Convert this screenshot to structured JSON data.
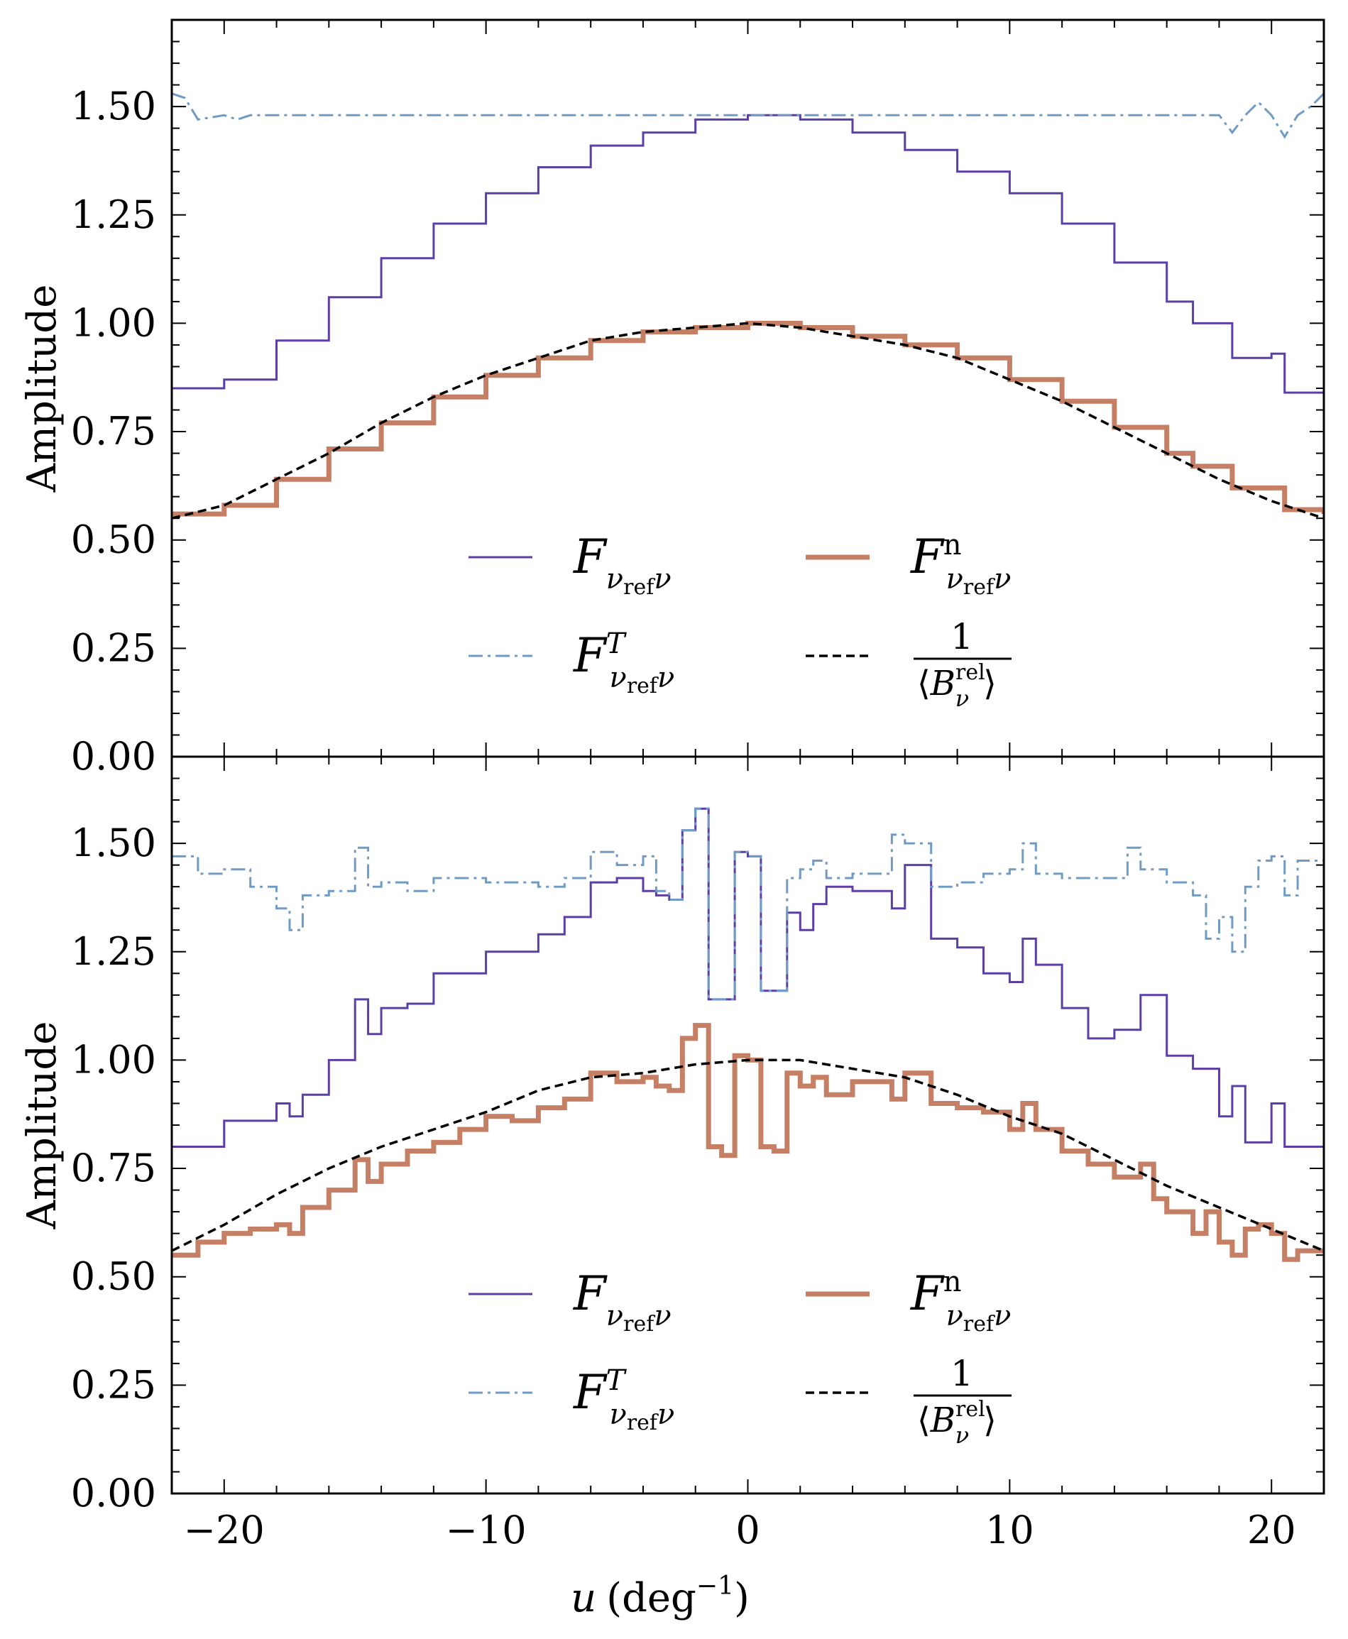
{
  "chart_data": {
    "type": "line",
    "xlabel": "u (deg⁻¹)",
    "x_axis_symbol": "u",
    "x_axis_unit": "(deg",
    "x_axis_unit_exponent": "−1",
    "x_axis_unit_close": ")",
    "xlim": [
      -22,
      22
    ],
    "xticks": [
      -20,
      -10,
      0,
      10,
      20
    ],
    "xtick_labels": [
      "−20",
      "−10",
      "0",
      "10",
      "20"
    ],
    "colors": {
      "F_raw": "#5b3fa6",
      "F_T": "#6f9bc4",
      "F_n": "#c47f64",
      "inv_B": "#000000"
    },
    "legend": {
      "placement": "lower-center",
      "entries": [
        {
          "key": "F_raw",
          "main": "F",
          "sub": "ν",
          "subsub": "ref",
          "sub2": "ν",
          "sup": ""
        },
        {
          "key": "F_n",
          "main": "F",
          "sub": "ν",
          "subsub": "ref",
          "sub2": "ν",
          "sup": "n"
        },
        {
          "key": "F_T",
          "main": "F",
          "sub": "ν",
          "subsub": "ref",
          "sub2": "ν",
          "sup": "T"
        },
        {
          "key": "inv_B",
          "numerator": "1",
          "den_open": "⟨",
          "den_main": "B",
          "den_sup": "rel",
          "den_sub": "ν",
          "den_close": "⟩"
        }
      ]
    },
    "panels": [
      {
        "name": "top",
        "ylabel": "Amplitude",
        "ylim": [
          0,
          1.7
        ],
        "yticks": [
          0.0,
          0.25,
          0.5,
          0.75,
          1.0,
          1.25,
          1.5
        ],
        "ytick_labels": [
          "0.00",
          "0.25",
          "0.50",
          "0.75",
          "1.00",
          "1.25",
          "1.50"
        ],
        "series": [
          {
            "key": "F_raw",
            "name": "F_raw",
            "style": "solid-step",
            "x": [
              -22,
              -20,
              -18,
              -16,
              -14,
              -12,
              -10,
              -8,
              -6,
              -4,
              -2,
              0,
              2,
              4,
              6,
              8,
              10,
              12,
              14,
              16,
              17,
              18,
              18.5,
              20,
              20.5,
              22
            ],
            "values": [
              0.85,
              0.87,
              0.96,
              1.06,
              1.15,
              1.23,
              1.3,
              1.36,
              1.41,
              1.44,
              1.47,
              1.48,
              1.47,
              1.44,
              1.4,
              1.35,
              1.3,
              1.23,
              1.14,
              1.05,
              1.0,
              1.0,
              0.92,
              0.93,
              0.84,
              0.84
            ]
          },
          {
            "key": "F_T",
            "name": "F_T",
            "style": "dashdot",
            "x": [
              -22,
              -21.5,
              -21,
              -20,
              -19.5,
              -19,
              -18,
              -10,
              0,
              10,
              18,
              18.5,
              19,
              19.5,
              20,
              20.5,
              21,
              21.5,
              22
            ],
            "values": [
              1.53,
              1.52,
              1.47,
              1.48,
              1.47,
              1.48,
              1.48,
              1.48,
              1.48,
              1.48,
              1.48,
              1.44,
              1.48,
              1.51,
              1.48,
              1.43,
              1.48,
              1.5,
              1.53
            ]
          },
          {
            "key": "F_n",
            "name": "F_n",
            "style": "thick-step",
            "x": [
              -22,
              -20,
              -18,
              -16,
              -14,
              -12,
              -10,
              -8,
              -6,
              -4,
              -2,
              0,
              2,
              4,
              6,
              8,
              10,
              12,
              14,
              16,
              17,
              18,
              18.5,
              19,
              20,
              20.5,
              22
            ],
            "values": [
              0.56,
              0.58,
              0.64,
              0.71,
              0.77,
              0.83,
              0.88,
              0.92,
              0.96,
              0.98,
              0.99,
              1.0,
              0.99,
              0.97,
              0.95,
              0.92,
              0.87,
              0.82,
              0.76,
              0.7,
              0.67,
              0.67,
              0.62,
              0.62,
              0.62,
              0.57,
              0.56
            ]
          },
          {
            "key": "inv_B",
            "name": "inv_B",
            "style": "dashed",
            "x": [
              -22,
              -20,
              -18,
              -16,
              -14,
              -12,
              -10,
              -8,
              -6,
              -4,
              -2,
              0,
              2,
              4,
              6,
              8,
              10,
              12,
              14,
              16,
              18,
              20,
              22
            ],
            "values": [
              0.55,
              0.58,
              0.64,
              0.7,
              0.77,
              0.83,
              0.88,
              0.92,
              0.96,
              0.98,
              0.99,
              1.0,
              0.99,
              0.97,
              0.95,
              0.92,
              0.87,
              0.82,
              0.76,
              0.7,
              0.64,
              0.59,
              0.55
            ]
          }
        ]
      },
      {
        "name": "bottom",
        "ylabel": "Amplitude",
        "ylim": [
          0,
          1.7
        ],
        "yticks": [
          0.0,
          0.25,
          0.5,
          0.75,
          1.0,
          1.25,
          1.5
        ],
        "ytick_labels": [
          "0.00",
          "0.25",
          "0.50",
          "0.75",
          "1.00",
          "1.25",
          "1.50"
        ],
        "series": [
          {
            "key": "F_raw",
            "name": "F_raw",
            "style": "solid-step",
            "x": [
              -22,
              -20,
              -18,
              -17.5,
              -17,
              -16,
              -15,
              -14.5,
              -14,
              -13,
              -12,
              -10,
              -8,
              -7,
              -6,
              -5,
              -4,
              -3.5,
              -3,
              -2.5,
              -2,
              -1.5,
              -1,
              -0.5,
              0,
              0.5,
              1,
              1.5,
              2,
              2.5,
              3,
              4,
              5,
              5.5,
              6,
              7,
              8,
              9,
              10,
              10.5,
              11,
              12,
              13,
              14,
              15,
              16,
              17,
              18,
              18.5,
              19,
              20,
              20.5,
              22
            ],
            "values": [
              0.8,
              0.86,
              0.9,
              0.87,
              0.92,
              1.0,
              1.14,
              1.06,
              1.12,
              1.13,
              1.2,
              1.25,
              1.29,
              1.33,
              1.41,
              1.42,
              1.39,
              1.38,
              1.37,
              1.53,
              1.58,
              1.14,
              1.14,
              1.48,
              1.47,
              1.16,
              1.16,
              1.34,
              1.3,
              1.36,
              1.4,
              1.39,
              1.39,
              1.35,
              1.45,
              1.28,
              1.26,
              1.2,
              1.18,
              1.28,
              1.22,
              1.12,
              1.05,
              1.07,
              1.15,
              1.01,
              0.98,
              0.87,
              0.94,
              0.81,
              0.9,
              0.8,
              0.82
            ]
          },
          {
            "key": "F_T",
            "name": "F_T",
            "style": "dashdot",
            "x": [
              -22,
              -21,
              -20,
              -19,
              -18,
              -17.5,
              -17,
              -16,
              -15,
              -14.5,
              -14,
              -13,
              -12,
              -10,
              -8,
              -7,
              -6,
              -5,
              -4,
              -3.5,
              -3,
              -2.5,
              -2,
              -1.5,
              -1,
              -0.5,
              0,
              0.5,
              1,
              1.5,
              2,
              2.5,
              3,
              4,
              5,
              5.5,
              6,
              7,
              8,
              9,
              10,
              10.5,
              11,
              12,
              13,
              14,
              14.5,
              15,
              16,
              17,
              17.5,
              18,
              18.5,
              19,
              19.5,
              20,
              20.5,
              21,
              22
            ],
            "values": [
              1.47,
              1.43,
              1.44,
              1.4,
              1.35,
              1.3,
              1.38,
              1.39,
              1.49,
              1.4,
              1.41,
              1.39,
              1.42,
              1.41,
              1.4,
              1.42,
              1.48,
              1.45,
              1.47,
              1.39,
              1.37,
              1.53,
              1.58,
              1.14,
              1.14,
              1.48,
              1.47,
              1.16,
              1.16,
              1.42,
              1.44,
              1.46,
              1.42,
              1.43,
              1.43,
              1.52,
              1.5,
              1.4,
              1.41,
              1.43,
              1.44,
              1.5,
              1.43,
              1.42,
              1.42,
              1.42,
              1.49,
              1.44,
              1.41,
              1.38,
              1.28,
              1.33,
              1.25,
              1.4,
              1.46,
              1.47,
              1.38,
              1.46,
              1.52
            ]
          },
          {
            "key": "F_n",
            "name": "F_n",
            "style": "thick-step",
            "x": [
              -22,
              -21,
              -20,
              -19,
              -18,
              -17.5,
              -17,
              -16,
              -15,
              -14.5,
              -14,
              -13,
              -12,
              -11,
              -10,
              -9,
              -8,
              -7,
              -6,
              -5,
              -4,
              -3.5,
              -3,
              -2.5,
              -2,
              -1.5,
              -1,
              -0.5,
              0,
              0.5,
              1,
              1.5,
              2,
              2.5,
              3,
              4,
              5,
              5.5,
              6,
              7,
              8,
              9,
              10,
              10.5,
              11,
              12,
              13,
              14,
              15,
              15.5,
              16,
              17,
              17.5,
              18,
              18.5,
              19,
              19.5,
              20,
              20.5,
              21,
              22
            ],
            "values": [
              0.55,
              0.58,
              0.6,
              0.61,
              0.62,
              0.6,
              0.66,
              0.7,
              0.77,
              0.72,
              0.76,
              0.79,
              0.81,
              0.84,
              0.87,
              0.86,
              0.89,
              0.91,
              0.97,
              0.95,
              0.96,
              0.94,
              0.93,
              1.05,
              1.08,
              0.8,
              0.78,
              1.01,
              1.0,
              0.8,
              0.79,
              0.97,
              0.94,
              0.96,
              0.92,
              0.95,
              0.95,
              0.91,
              0.97,
              0.9,
              0.89,
              0.88,
              0.84,
              0.9,
              0.84,
              0.79,
              0.76,
              0.73,
              0.76,
              0.68,
              0.65,
              0.6,
              0.65,
              0.58,
              0.55,
              0.61,
              0.62,
              0.6,
              0.54,
              0.56,
              0.56
            ]
          },
          {
            "key": "inv_B",
            "name": "inv_B",
            "style": "dashed",
            "x": [
              -22,
              -20,
              -18,
              -16,
              -14,
              -12,
              -10,
              -8,
              -6,
              -4,
              -2,
              0,
              2,
              4,
              6,
              8,
              10,
              12,
              14,
              16,
              18,
              20,
              22
            ],
            "values": [
              0.56,
              0.62,
              0.69,
              0.75,
              0.8,
              0.84,
              0.88,
              0.93,
              0.96,
              0.97,
              0.99,
              1.0,
              1.0,
              0.98,
              0.96,
              0.92,
              0.87,
              0.83,
              0.77,
              0.71,
              0.66,
              0.61,
              0.56
            ]
          }
        ]
      }
    ]
  }
}
